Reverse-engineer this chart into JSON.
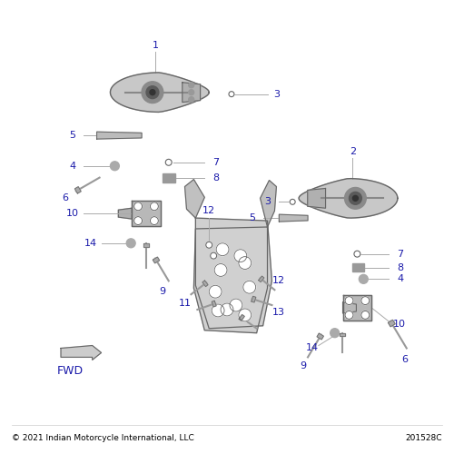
{
  "bg_color": "#ffffff",
  "line_color": "#aaaaaa",
  "label_color": "#1a1aaa",
  "part_fill": "#c8c8c8",
  "part_edge": "#666666",
  "dark_fill": "#909090",
  "footer_left": "© 2021 Indian Motorcycle International, LLC",
  "footer_right": "201528C",
  "fwd_label": "FWD",
  "figsize": [
    5.0,
    5.0
  ],
  "dpi": 100
}
